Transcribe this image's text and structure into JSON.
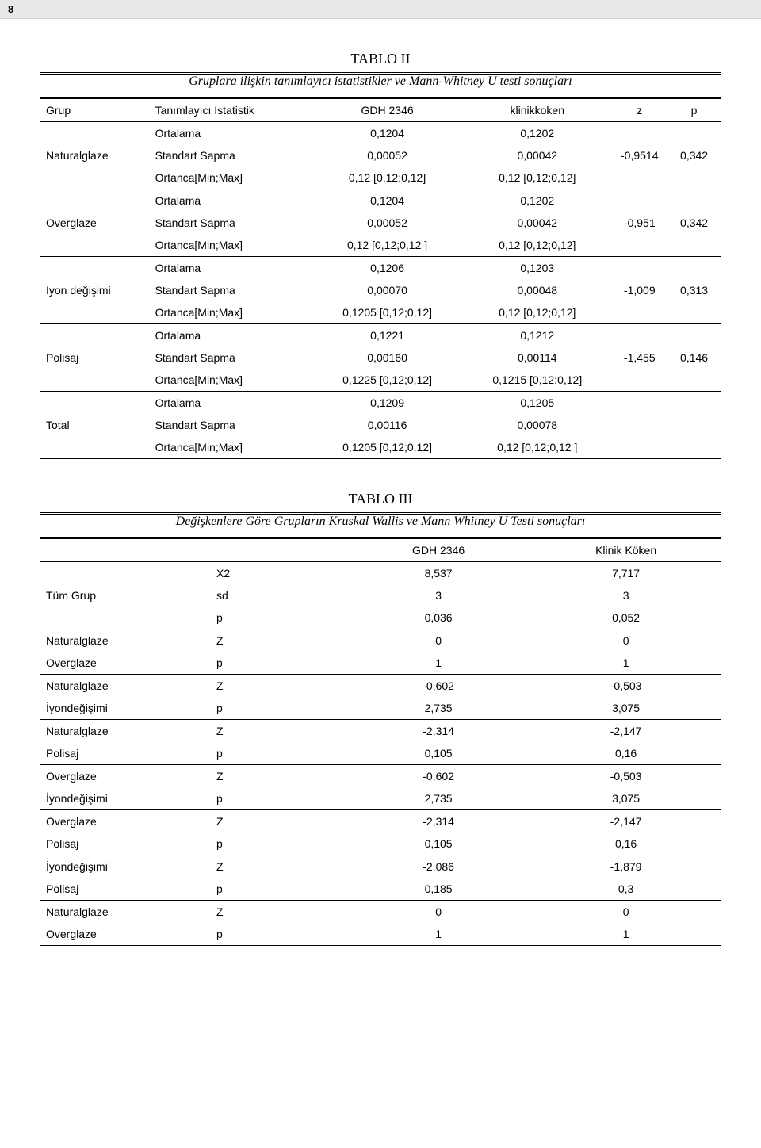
{
  "pageNumber": "8",
  "table2": {
    "title": "TABLO II",
    "caption": "Gruplara ilişkin tanımlayıcı istatistikler ve Mann-Whitney U testi sonuçları",
    "columns": [
      "Grup",
      "Tanımlayıcı İstatistik",
      "GDH 2346",
      "klinikkoken",
      "z",
      "p"
    ],
    "groups": [
      {
        "name": "Naturalglaze",
        "rows": [
          [
            "Ortalama",
            "0,1204",
            "0,1202"
          ],
          [
            "Standart Sapma",
            "0,00052",
            "0,00042"
          ],
          [
            "Ortanca[Min;Max]",
            "0,12 [0,12;0,12]",
            "0,12 [0,12;0,12]"
          ]
        ],
        "z": "-0,9514",
        "p": "0,342"
      },
      {
        "name": "Overglaze",
        "rows": [
          [
            "Ortalama",
            "0,1204",
            "0,1202"
          ],
          [
            "Standart Sapma",
            "0,00052",
            "0,00042"
          ],
          [
            "Ortanca[Min;Max]",
            "0,12 [0,12;0,12 ]",
            "0,12 [0,12;0,12]"
          ]
        ],
        "z": "-0,951",
        "p": "0,342"
      },
      {
        "name": "İyon değişimi",
        "rows": [
          [
            "Ortalama",
            "0,1206",
            "0,1203"
          ],
          [
            "Standart Sapma",
            "0,00070",
            "0,00048"
          ],
          [
            "Ortanca[Min;Max]",
            "0,1205 [0,12;0,12]",
            "0,12 [0,12;0,12]"
          ]
        ],
        "z": "-1,009",
        "p": "0,313"
      },
      {
        "name": "Polisaj",
        "rows": [
          [
            "Ortalama",
            "0,1221",
            "0,1212"
          ],
          [
            "Standart Sapma",
            "0,00160",
            "0,00114"
          ],
          [
            "Ortanca[Min;Max]",
            "0,1225 [0,12;0,12]",
            "0,1215 [0,12;0,12]"
          ]
        ],
        "z": "-1,455",
        "p": "0,146"
      },
      {
        "name": "Total",
        "rows": [
          [
            "Ortalama",
            "0,1209",
            "0,1205"
          ],
          [
            "Standart Sapma",
            "0,00116",
            "0,00078"
          ],
          [
            "Ortanca[Min;Max]",
            "0,1205 [0,12;0,12]",
            "0,12 [0,12;0,12 ]"
          ]
        ],
        "z": "",
        "p": ""
      }
    ]
  },
  "table3": {
    "title": "TABLO III",
    "caption": "Değişkenlere Göre Grupların Kruskal Wallis ve Mann Whitney U Testi sonuçları",
    "columns": [
      "",
      "",
      "GDH 2346",
      "Klinik Köken"
    ],
    "groups": [
      {
        "name": "Tüm Grup",
        "rows": [
          [
            "X2",
            "8,537",
            "7,717"
          ],
          [
            "sd",
            "3",
            "3"
          ],
          [
            "p",
            "0,036",
            "0,052"
          ]
        ]
      },
      {
        "name2": [
          "Naturalglaze",
          "Overglaze"
        ],
        "rows": [
          [
            "Z",
            "0",
            "0"
          ],
          [
            "p",
            "1",
            "1"
          ]
        ]
      },
      {
        "name2": [
          "Naturalglaze",
          "İyondeğişimi"
        ],
        "rows": [
          [
            "Z",
            "-0,602",
            "-0,503"
          ],
          [
            "p",
            "2,735",
            "3,075"
          ]
        ]
      },
      {
        "name2": [
          "Naturalglaze",
          "Polisaj"
        ],
        "rows": [
          [
            "Z",
            "-2,314",
            "-2,147"
          ],
          [
            "p",
            "0,105",
            "0,16"
          ]
        ]
      },
      {
        "name2": [
          "Overglaze",
          "İyondeğişimi"
        ],
        "rows": [
          [
            "Z",
            "-0,602",
            "-0,503"
          ],
          [
            "p",
            "2,735",
            "3,075"
          ]
        ]
      },
      {
        "name2": [
          "Overglaze",
          "Polisaj"
        ],
        "rows": [
          [
            "Z",
            "-2,314",
            "-2,147"
          ],
          [
            "p",
            "0,105",
            "0,16"
          ]
        ]
      },
      {
        "name2": [
          "İyondeğişimi",
          "Polisaj"
        ],
        "rows": [
          [
            "Z",
            "-2,086",
            "-1,879"
          ],
          [
            "p",
            "0,185",
            "0,3"
          ]
        ]
      },
      {
        "name2": [
          "Naturalglaze",
          "Overglaze"
        ],
        "rows": [
          [
            "Z",
            "0",
            "0"
          ],
          [
            "p",
            "1",
            "1"
          ]
        ]
      }
    ]
  }
}
